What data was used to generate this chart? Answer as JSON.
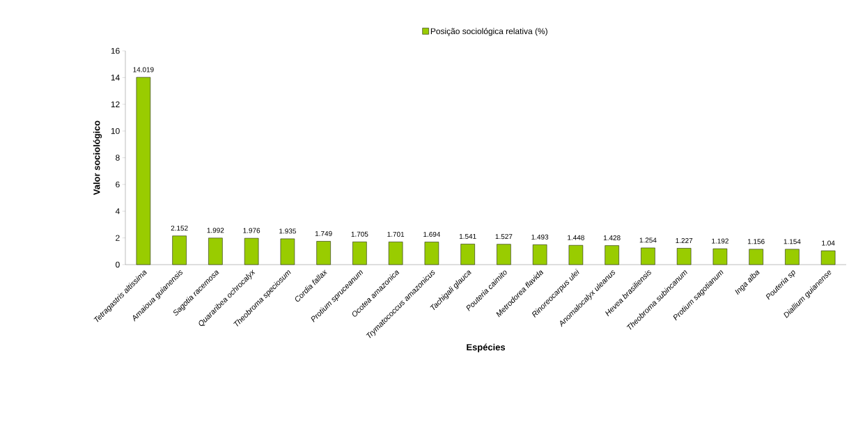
{
  "chart_data": {
    "type": "bar",
    "xlabel": "Espécies",
    "ylabel": "Valor sociológico",
    "categories": [
      "Tetragastris altissima",
      "Amaioua guianensis",
      "Sagotia racemosa",
      "Quararibea ochrocalyx",
      "Theobroma speciosum",
      "Cordia fallax",
      "Protium spruceanum",
      "Ocotea amazonica",
      "Trymatococcus amazonicus",
      "Tachigali glauca",
      "Pouteria caimito",
      "Metrodorea flavida",
      "Rinoreocarpus ulei",
      "Anomalocalyx uleanus",
      "Hevea brasiliensis",
      "Theobroma subincanum",
      "Protium sagotianum",
      "Inga alba",
      "Pouteria sp",
      "Diallium guianense"
    ],
    "series": [
      {
        "name": "Posição sociológica relativa (%)",
        "color": "#99cc00",
        "values": [
          14.019,
          2.152,
          1.992,
          1.976,
          1.935,
          1.749,
          1.705,
          1.701,
          1.694,
          1.541,
          1.527,
          1.493,
          1.448,
          1.428,
          1.254,
          1.227,
          1.192,
          1.156,
          1.154,
          1.04
        ],
        "value_labels": [
          "14.019",
          "2.152",
          "1.992",
          "1.976",
          "1.935",
          "1.749",
          "1.705",
          "1.701",
          "1.694",
          "1.541",
          "1.527",
          "1.493",
          "1.448",
          "1.428",
          "1.254",
          "1.227",
          "1.192",
          "1.156",
          "1.154",
          "1.04"
        ]
      }
    ],
    "ylim": [
      0,
      16
    ],
    "yticks": [
      0,
      2,
      4,
      6,
      8,
      10,
      12,
      14,
      16
    ],
    "legend": "top",
    "grid": false
  }
}
